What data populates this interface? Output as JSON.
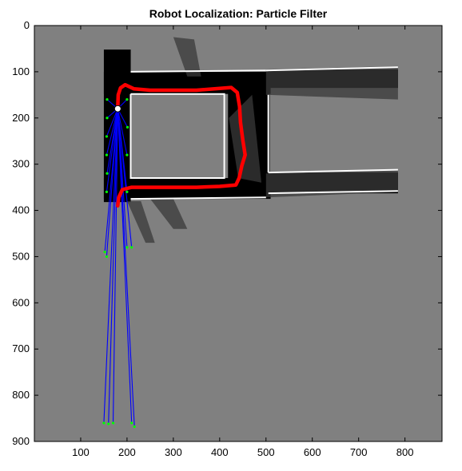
{
  "chart_data": {
    "type": "map-overlay",
    "title": "Robot Localization: Particle Filter",
    "xlim": [
      0,
      880
    ],
    "ylim": [
      0,
      900
    ],
    "y_reversed": true,
    "xticks": [
      100,
      200,
      300,
      400,
      500,
      600,
      700,
      800
    ],
    "yticks": [
      0,
      100,
      200,
      300,
      400,
      500,
      600,
      700,
      800,
      900
    ],
    "colors": {
      "unknown": "#808080",
      "free": "#000000",
      "wall": "#ffffff",
      "trajectory": "#ff0000",
      "scan_rays": "#0000ff",
      "scan_hits": "#00ff00",
      "robot": "#ffffff"
    },
    "robot_pose": {
      "x": 180,
      "y": 180
    },
    "trajectory": [
      [
        180,
        178
      ],
      [
        181,
        150
      ],
      [
        186,
        135
      ],
      [
        196,
        128
      ],
      [
        215,
        137
      ],
      [
        250,
        140
      ],
      [
        300,
        140
      ],
      [
        350,
        140
      ],
      [
        400,
        136
      ],
      [
        425,
        134
      ],
      [
        438,
        145
      ],
      [
        443,
        175
      ],
      [
        445,
        210
      ],
      [
        450,
        248
      ],
      [
        455,
        280
      ],
      [
        448,
        303
      ],
      [
        442,
        330
      ],
      [
        435,
        345
      ],
      [
        400,
        348
      ],
      [
        350,
        350
      ],
      [
        300,
        350
      ],
      [
        250,
        350
      ],
      [
        210,
        350
      ],
      [
        190,
        355
      ],
      [
        182,
        372
      ],
      [
        180,
        390
      ]
    ],
    "scan_hits": [
      [
        157,
        160
      ],
      [
        157,
        200
      ],
      [
        156,
        240
      ],
      [
        156,
        280
      ],
      [
        157,
        320
      ],
      [
        156,
        360
      ],
      [
        200,
        160
      ],
      [
        201,
        220
      ],
      [
        200,
        280
      ],
      [
        200,
        360
      ],
      [
        152,
        490
      ],
      [
        156,
        500
      ],
      [
        200,
        480
      ],
      [
        210,
        480
      ],
      [
        150,
        860
      ],
      [
        160,
        862
      ],
      [
        170,
        860
      ],
      [
        210,
        860
      ],
      [
        216,
        868
      ]
    ]
  }
}
